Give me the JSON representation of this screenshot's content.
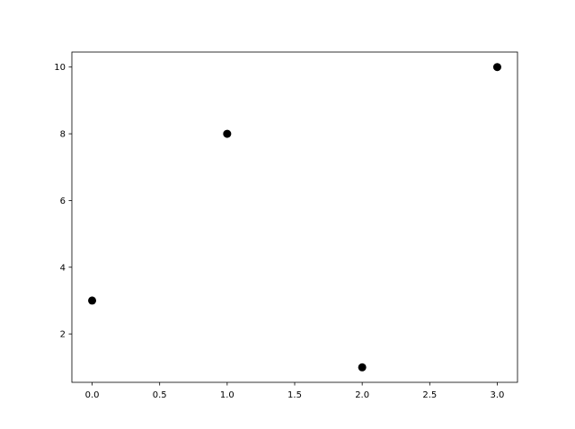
{
  "chart_data": {
    "type": "scatter",
    "title": "",
    "xlabel": "",
    "ylabel": "",
    "x": [
      0,
      1,
      2,
      3
    ],
    "y": [
      3,
      8,
      1,
      10
    ],
    "xlim": [
      -0.15,
      3.15
    ],
    "ylim": [
      0.55,
      10.45
    ],
    "xticks": [
      0.0,
      0.5,
      1.0,
      1.5,
      2.0,
      2.5,
      3.0
    ],
    "xtick_labels": [
      "0.0",
      "0.5",
      "1.0",
      "1.5",
      "2.0",
      "2.5",
      "3.0"
    ],
    "yticks": [
      2,
      4,
      6,
      8,
      10
    ],
    "ytick_labels": [
      "2",
      "4",
      "6",
      "8",
      "10"
    ],
    "grid": false,
    "marker_color": "#000000"
  }
}
